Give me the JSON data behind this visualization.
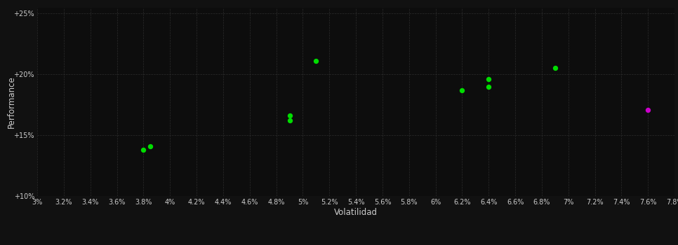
{
  "background_color": "#111111",
  "plot_bg_color": "#0d0d0d",
  "grid_color": "#333333",
  "text_color": "#cccccc",
  "xlabel": "Volatilidad",
  "ylabel": "Performance",
  "xlim": [
    0.03,
    0.078
  ],
  "ylim": [
    0.1,
    0.255
  ],
  "xticks": [
    0.03,
    0.032,
    0.034,
    0.036,
    0.038,
    0.04,
    0.042,
    0.044,
    0.046,
    0.048,
    0.05,
    0.052,
    0.054,
    0.056,
    0.058,
    0.06,
    0.062,
    0.064,
    0.066,
    0.068,
    0.07,
    0.072,
    0.074,
    0.076,
    0.078
  ],
  "yticks": [
    0.1,
    0.15,
    0.2,
    0.25
  ],
  "ytick_labels": [
    "+10%",
    "+15%",
    "+20%",
    "+25%"
  ],
  "green_points": [
    [
      0.038,
      0.138
    ],
    [
      0.0385,
      0.141
    ],
    [
      0.049,
      0.166
    ],
    [
      0.049,
      0.162
    ],
    [
      0.051,
      0.211
    ],
    [
      0.062,
      0.187
    ],
    [
      0.064,
      0.19
    ],
    [
      0.064,
      0.196
    ],
    [
      0.069,
      0.205
    ]
  ],
  "magenta_points": [
    [
      0.076,
      0.171
    ]
  ],
  "point_size": 28,
  "green_color": "#00dd00",
  "magenta_color": "#cc00cc"
}
